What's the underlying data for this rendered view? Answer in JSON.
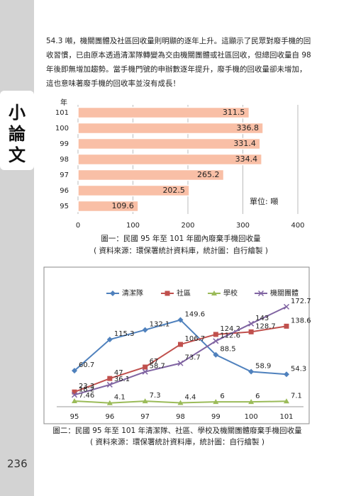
{
  "sidebar": {
    "label": "小論文"
  },
  "paragraph": {
    "lines": [
      "54.3 噸，機關團體及社區回收量則明顯的逐年上升。這顯示了民眾對廢手機的回",
      "收習慣，已由原本透過清潔隊轉變為交由機關團體或社區回收，但總回收量自 98",
      "年後即無增加趨勢。當手機門號的申辦數逐年提升，廢手機的回收量卻未增加，",
      "這也意味著廢手機的回收率並沒有成長！"
    ]
  },
  "page_number": "236",
  "chart_data": [
    {
      "type": "hbar",
      "y_label": "年",
      "annotation": "單位: 噸",
      "categories": [
        "101",
        "100",
        "99",
        "98",
        "97",
        "96",
        "95"
      ],
      "values": [
        311.5,
        336.8,
        331.4,
        334.4,
        265.2,
        202.5,
        109.6
      ],
      "color": "#f9bfa6",
      "xlim": [
        0,
        400
      ],
      "xticks": [
        0,
        100,
        200,
        300,
        400
      ],
      "grid": true,
      "caption": "圖一：民國 95 年至 101 年國內廢棄手機回收量",
      "source": "( 資料來源：環保署統計資料庫，統計圖：自行繪製 )"
    },
    {
      "type": "line",
      "legend": "top",
      "categories": [
        "95",
        "96",
        "97",
        "98",
        "99",
        "100",
        "101"
      ],
      "ylim": [
        0,
        180
      ],
      "series": [
        {
          "name": "清潔隊",
          "color": "#4f81bd",
          "marker": "diamond",
          "values": [
            60.7,
            115.3,
            132.1,
            149.6,
            88.5,
            58.9,
            54.3
          ]
        },
        {
          "name": "社區",
          "color": "#c0504d",
          "marker": "square",
          "values": [
            23.3,
            47,
            67,
            106.7,
            124.2,
            128.7,
            138.6
          ]
        },
        {
          "name": "學校",
          "color": "#9bbb59",
          "marker": "triangle",
          "values": [
            7.46,
            4.1,
            7.3,
            4.4,
            6,
            6,
            7.1
          ]
        },
        {
          "name": "機關團體",
          "color": "#8064a2",
          "marker": "x",
          "values": [
            18.2,
            36.1,
            58.7,
            73.7,
            112.6,
            143,
            172.7
          ]
        }
      ],
      "caption": "圖二：民國 95 年至 101 年清潔隊、社區、學校及機關團體廢棄手機回收量",
      "source": "( 資料來源：環保署統計資料庫，統計圖：自行繪製 )"
    }
  ]
}
